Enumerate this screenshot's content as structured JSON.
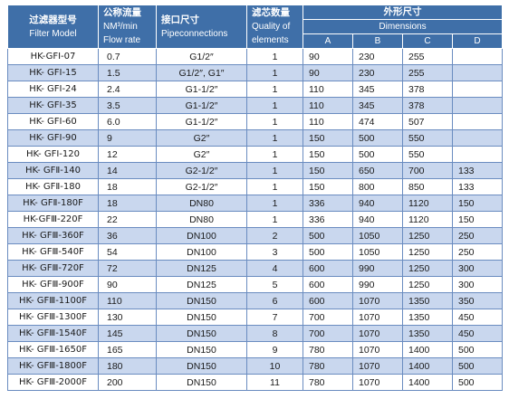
{
  "headers": {
    "model_cn": "过滤器型号",
    "model_en": "Filter Model",
    "flow_cn": "公称流量",
    "flow_unit": "NM³/min",
    "flow_en": "Flow rate",
    "conn_cn": "接口尺寸",
    "conn_en": "Pipeconnections",
    "qty_cn": "滤芯数量",
    "qty_en1": "Quality of",
    "qty_en2": "elements",
    "dim_cn": "外形尺寸",
    "dim_en": "Dimensions",
    "dim_a": "A",
    "dim_b": "B",
    "dim_c": "C",
    "dim_d": "D"
  },
  "rows": [
    {
      "model": "HK-GFⅠ-07",
      "flow": "0.7",
      "conn": "G1/2″",
      "qty": "1",
      "a": "90",
      "b": "230",
      "c": "255",
      "d": ""
    },
    {
      "model": "HK- GFⅠ-15",
      "flow": "1.5",
      "conn": "G1/2″, G1″",
      "qty": "1",
      "a": "90",
      "b": "230",
      "c": "255",
      "d": ""
    },
    {
      "model": "HK- GFⅠ-24",
      "flow": "2.4",
      "conn": "G1-1/2″",
      "qty": "1",
      "a": "110",
      "b": "345",
      "c": "378",
      "d": ""
    },
    {
      "model": "HK- GFⅠ-35",
      "flow": "3.5",
      "conn": "G1-1/2″",
      "qty": "1",
      "a": "110",
      "b": "345",
      "c": "378",
      "d": ""
    },
    {
      "model": "HK- GFⅠ-60",
      "flow": "6.0",
      "conn": "G1-1/2″",
      "qty": "1",
      "a": "110",
      "b": "474",
      "c": "507",
      "d": ""
    },
    {
      "model": "HK- GFⅠ-90",
      "flow": "9",
      "conn": "G2″",
      "qty": "1",
      "a": "150",
      "b": "500",
      "c": "550",
      "d": ""
    },
    {
      "model": "HK- GFⅠ-120",
      "flow": "12",
      "conn": "G2″",
      "qty": "1",
      "a": "150",
      "b": "500",
      "c": "550",
      "d": ""
    },
    {
      "model": "HK- GFⅡ-140",
      "flow": "14",
      "conn": "G2-1/2″",
      "qty": "1",
      "a": "150",
      "b": "650",
      "c": "700",
      "d": "133"
    },
    {
      "model": "HK- GFⅡ-180",
      "flow": "18",
      "conn": "G2-1/2″",
      "qty": "1",
      "a": "150",
      "b": "800",
      "c": "850",
      "d": "133"
    },
    {
      "model": "HK- GFⅡ-180F",
      "flow": "18",
      "conn": "DN80",
      "qty": "1",
      "a": "336",
      "b": "940",
      "c": "1120",
      "d": "150"
    },
    {
      "model": "HK-GFⅢ-220F",
      "flow": "22",
      "conn": "DN80",
      "qty": "1",
      "a": "336",
      "b": "940",
      "c": "1120",
      "d": "150"
    },
    {
      "model": "HK- GFⅢ-360F",
      "flow": "36",
      "conn": "DN100",
      "qty": "2",
      "a": "500",
      "b": "1050",
      "c": "1250",
      "d": "250"
    },
    {
      "model": "HK- GFⅢ-540F",
      "flow": "54",
      "conn": "DN100",
      "qty": "3",
      "a": "500",
      "b": "1050",
      "c": "1250",
      "d": "250"
    },
    {
      "model": "HK- GFⅢ-720F",
      "flow": "72",
      "conn": "DN125",
      "qty": "4",
      "a": "600",
      "b": "990",
      "c": "1250",
      "d": "300"
    },
    {
      "model": "HK- GFⅢ-900F",
      "flow": "90",
      "conn": "DN125",
      "qty": "5",
      "a": "600",
      "b": "990",
      "c": "1250",
      "d": "300"
    },
    {
      "model": "HK- GFⅢ-1100F",
      "flow": "110",
      "conn": "DN150",
      "qty": "6",
      "a": "600",
      "b": "1070",
      "c": "1350",
      "d": "350"
    },
    {
      "model": "HK- GFⅢ-1300F",
      "flow": "130",
      "conn": "DN150",
      "qty": "7",
      "a": "700",
      "b": "1070",
      "c": "1350",
      "d": "450"
    },
    {
      "model": "HK- GFⅢ-1540F",
      "flow": "145",
      "conn": "DN150",
      "qty": "8",
      "a": "700",
      "b": "1070",
      "c": "1350",
      "d": "450"
    },
    {
      "model": "HK- GFⅢ-1650F",
      "flow": "165",
      "conn": "DN150",
      "qty": "9",
      "a": "780",
      "b": "1070",
      "c": "1400",
      "d": "500"
    },
    {
      "model": "HK- GFⅢ-1800F",
      "flow": "180",
      "conn": "DN150",
      "qty": "10",
      "a": "780",
      "b": "1070",
      "c": "1400",
      "d": "500"
    },
    {
      "model": "HK- GFⅢ-2000F",
      "flow": "200",
      "conn": "DN150",
      "qty": "11",
      "a": "780",
      "b": "1070",
      "c": "1400",
      "d": "500"
    }
  ]
}
